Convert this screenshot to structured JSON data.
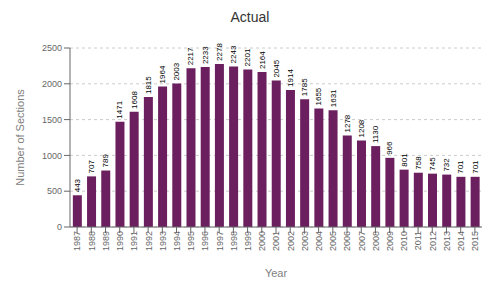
{
  "chart_data": {
    "type": "bar",
    "title": "Actual",
    "xlabel": "Year",
    "ylabel": "Number of Sections",
    "categories": [
      "1987",
      "1988",
      "1989",
      "1990",
      "1991",
      "1992",
      "1993",
      "1994",
      "1995",
      "1996",
      "1997",
      "1998",
      "1999",
      "2000",
      "2001",
      "2002",
      "2003",
      "2004",
      "2005",
      "2006",
      "2007",
      "2008",
      "2009",
      "2010",
      "2011",
      "2012",
      "2013",
      "2014",
      "2015"
    ],
    "values": [
      443,
      707,
      789,
      1471,
      1608,
      1815,
      1964,
      2003,
      2217,
      2233,
      2278,
      2243,
      2201,
      2164,
      2045,
      1914,
      1785,
      1655,
      1631,
      1278,
      1208,
      1130,
      966,
      801,
      758,
      745,
      732,
      701,
      701
    ],
    "color": "#6B1F5E",
    "ylim": [
      0,
      2500
    ],
    "yticks": [
      0,
      500,
      1000,
      1500,
      2000,
      2500
    ],
    "grid": true,
    "data_labels": true
  }
}
